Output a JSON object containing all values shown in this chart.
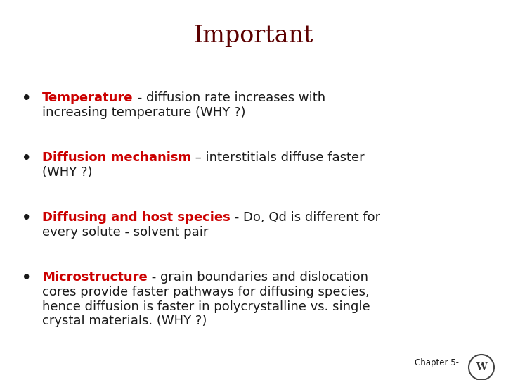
{
  "title": "Important",
  "title_color": "#5C0000",
  "title_fontsize": 24,
  "background_color": "#FFFFFF",
  "red_color": "#CC0000",
  "black_color": "#1a1a1a",
  "chapter_text": "Chapter 5-",
  "font_size": 13,
  "bullet_indent": 0.06,
  "text_indent": 0.1,
  "bullets": [
    {
      "keyword": "Temperature",
      "rest_line1": " - diffusion rate increases with",
      "rest_lines": [
        "increasing temperature (WHY ?)"
      ]
    },
    {
      "keyword": "Diffusion mechanism",
      "rest_line1": " – interstitials diffuse faster",
      "rest_lines": [
        "(WHY ?)"
      ]
    },
    {
      "keyword": "Diffusing and host species",
      "rest_line1": " - Do, Qd is different for",
      "rest_lines": [
        "every solute - solvent pair"
      ]
    },
    {
      "keyword": "Microstructure",
      "rest_line1": " - grain boundaries and dislocation",
      "rest_lines": [
        "cores provide faster pathways for diffusing species,",
        "hence diffusion is faster in polycrystalline vs. single",
        "crystal materials. (WHY ?)"
      ]
    }
  ]
}
